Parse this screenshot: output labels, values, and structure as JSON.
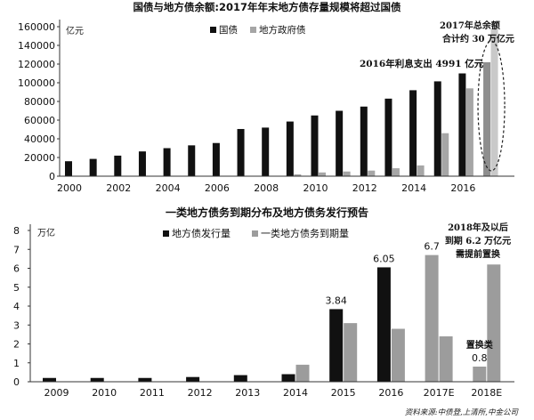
{
  "chart_data": [
    {
      "type": "bar",
      "title": "国债与地方债余额:2017年年末地方债存量规模将超过国债",
      "unit": "亿元",
      "x": [
        2000,
        2001,
        2002,
        2003,
        2004,
        2005,
        2006,
        2007,
        2008,
        2009,
        2010,
        2011,
        2012,
        2013,
        2014,
        2015,
        2016,
        2017
      ],
      "xticks": [
        2000,
        2002,
        2004,
        2006,
        2008,
        2010,
        2012,
        2014,
        2016
      ],
      "ylim": [
        0,
        160000
      ],
      "yticks": [
        0,
        20000,
        40000,
        60000,
        80000,
        100000,
        120000,
        140000,
        160000
      ],
      "grid": false,
      "legend": "top-center",
      "series": [
        {
          "name": "国债",
          "color": "#111111",
          "estimate_color": "#8e8e8e",
          "values": [
            16000,
            18500,
            22000,
            26500,
            30000,
            33000,
            35500,
            50500,
            52000,
            58500,
            65000,
            70000,
            74500,
            83000,
            92000,
            101500,
            110000,
            122000
          ]
        },
        {
          "name": "地方政府债",
          "color": "#a6a6a6",
          "estimate_color": "#c9c9c9",
          "values": [
            0,
            0,
            0,
            0,
            0,
            0,
            0,
            0,
            0,
            2000,
            4000,
            5000,
            6000,
            8500,
            11500,
            46000,
            94000,
            158000
          ]
        }
      ],
      "estimate_x": [
        2017
      ],
      "highlight_x": 2017,
      "annotations": [
        {
          "lines": [
            "2017年总余额",
            "合计约 30 万亿元"
          ]
        },
        {
          "lines": [
            "2016年利息支出 4991 亿元"
          ]
        }
      ]
    },
    {
      "type": "bar",
      "title": "一类地方债务到期分布及地方债务发行预告",
      "unit": "万亿",
      "categories": [
        "2009",
        "2010",
        "2011",
        "2012",
        "2013",
        "2014",
        "2015",
        "2016",
        "2017E",
        "2018E"
      ],
      "ylim": [
        0,
        8
      ],
      "yticks": [
        0,
        1,
        2,
        3,
        4,
        5,
        6,
        7,
        8
      ],
      "grid": false,
      "legend": "top-center",
      "series": [
        {
          "name": "地方债发行量",
          "color": "#111111",
          "estimate_color": "#9c9c9c",
          "values": [
            0.2,
            0.2,
            0.2,
            0.25,
            0.35,
            0.4,
            3.84,
            6.05,
            6.7,
            0.8
          ]
        },
        {
          "name": "一类地方债务到期量",
          "color": "#9c9c9c",
          "estimate_color": "#9c9c9c",
          "values": [
            0,
            0,
            0,
            0,
            0,
            0.9,
            3.1,
            2.8,
            2.4,
            6.2
          ]
        }
      ],
      "estimate_categories": [
        "2017E",
        "2018E"
      ],
      "data_labels": [
        {
          "category": "2015",
          "series": "地方债发行量",
          "lines": [
            "3.84"
          ]
        },
        {
          "category": "2016",
          "series": "地方债发行量",
          "lines": [
            "6.05"
          ]
        },
        {
          "category": "2017E",
          "series": "地方债发行量",
          "lines": [
            "6.7"
          ]
        },
        {
          "category": "2018E",
          "series": "地方债发行量",
          "lines": [
            "置换类",
            "0.8"
          ]
        }
      ],
      "annotations": [
        {
          "lines": [
            "2018年及以后",
            "到期 6.2 万亿元",
            "需提前置换"
          ]
        }
      ]
    }
  ],
  "source": "资料来源:中债登,上清所,中金公司"
}
